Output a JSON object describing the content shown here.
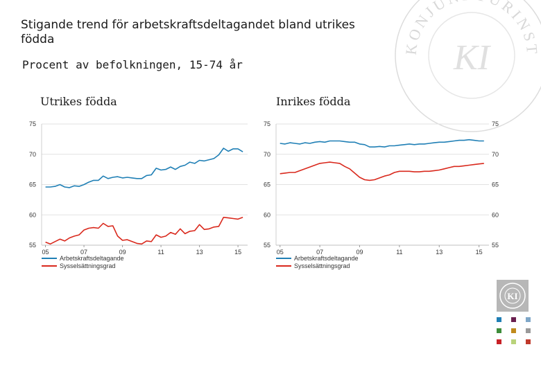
{
  "title": "Stigande trend för arbetskraftsdeltagandet bland utrikes födda",
  "subtitle": "Procent av befolkningen, 15-74 år",
  "brand": {
    "watermark_text": "KONJUNKTURINSTITUTET",
    "logo_text": "KI"
  },
  "colors": {
    "participation": "#1f7fb5",
    "employment": "#d9281c",
    "grid": "#e2e2e2",
    "axis_text": "#333333",
    "palette": [
      "#1f7fb5",
      "#6a1f4f",
      "#7fa7c8",
      "#3e8d3a",
      "#c08a1c",
      "#9a9a9a",
      "#c82127",
      "#b9d37b",
      "#c0392b"
    ]
  },
  "chart_data": [
    {
      "type": "line",
      "title": "Utrikes födda",
      "x": [
        2005.0,
        2005.25,
        2005.5,
        2005.75,
        2006.0,
        2006.25,
        2006.5,
        2006.75,
        2007.0,
        2007.25,
        2007.5,
        2007.75,
        2008.0,
        2008.25,
        2008.5,
        2008.75,
        2009.0,
        2009.25,
        2009.5,
        2009.75,
        2010.0,
        2010.25,
        2010.5,
        2010.75,
        2011.0,
        2011.25,
        2011.5,
        2011.75,
        2012.0,
        2012.25,
        2012.5,
        2012.75,
        2013.0,
        2013.25,
        2013.5,
        2013.75,
        2014.0,
        2014.25,
        2014.5,
        2014.75,
        2015.0,
        2015.25
      ],
      "xticks": [
        2005,
        2007,
        2009,
        2011,
        2013,
        2015
      ],
      "xtick_labels": [
        "05",
        "07",
        "09",
        "11",
        "13",
        "15"
      ],
      "ylim": [
        55,
        75
      ],
      "yticks": [
        55,
        60,
        65,
        70,
        75
      ],
      "ytick_labels": [
        "55",
        "60",
        "65",
        "70",
        "75"
      ],
      "series": [
        {
          "name": "Arbetskraftsdeltagande",
          "values": [
            64.6,
            64.6,
            64.7,
            65.0,
            64.6,
            64.5,
            64.8,
            64.7,
            65.0,
            65.4,
            65.7,
            65.7,
            66.4,
            66.0,
            66.2,
            66.3,
            66.1,
            66.2,
            66.1,
            66.0,
            66.0,
            66.5,
            66.6,
            67.7,
            67.4,
            67.5,
            67.9,
            67.5,
            68.0,
            68.2,
            68.7,
            68.5,
            69.0,
            68.9,
            69.1,
            69.3,
            69.9,
            71.0,
            70.5,
            70.9,
            70.9,
            70.4
          ]
        },
        {
          "name": "Sysselsättningsgrad",
          "values": [
            55.5,
            55.2,
            55.6,
            56.0,
            55.7,
            56.2,
            56.5,
            56.7,
            57.5,
            57.8,
            57.9,
            57.8,
            58.6,
            58.1,
            58.2,
            56.5,
            55.8,
            55.9,
            55.6,
            55.3,
            55.2,
            55.7,
            55.6,
            56.7,
            56.3,
            56.5,
            57.1,
            56.8,
            57.7,
            56.9,
            57.3,
            57.4,
            58.4,
            57.6,
            57.7,
            58.0,
            58.1,
            59.6,
            59.5,
            59.4,
            59.3,
            59.6
          ]
        }
      ]
    },
    {
      "type": "line",
      "title": "Inrikes födda",
      "x": [
        2005.0,
        2005.25,
        2005.5,
        2005.75,
        2006.0,
        2006.25,
        2006.5,
        2006.75,
        2007.0,
        2007.25,
        2007.5,
        2007.75,
        2008.0,
        2008.25,
        2008.5,
        2008.75,
        2009.0,
        2009.25,
        2009.5,
        2009.75,
        2010.0,
        2010.25,
        2010.5,
        2010.75,
        2011.0,
        2011.25,
        2011.5,
        2011.75,
        2012.0,
        2012.25,
        2012.5,
        2012.75,
        2013.0,
        2013.25,
        2013.5,
        2013.75,
        2014.0,
        2014.25,
        2014.5,
        2014.75,
        2015.0,
        2015.25
      ],
      "xticks": [
        2005,
        2007,
        2009,
        2011,
        2013,
        2015
      ],
      "xtick_labels": [
        "05",
        "07",
        "09",
        "11",
        "13",
        "15"
      ],
      "ylim": [
        55,
        75
      ],
      "yticks": [
        55,
        60,
        65,
        70,
        75
      ],
      "ytick_labels": [
        "55",
        "60",
        "65",
        "70",
        "75"
      ],
      "series": [
        {
          "name": "Arbetskraftsdeltagande",
          "values": [
            71.8,
            71.7,
            71.9,
            71.8,
            71.7,
            71.9,
            71.8,
            72.0,
            72.1,
            72.0,
            72.2,
            72.2,
            72.2,
            72.1,
            72.0,
            72.0,
            71.7,
            71.6,
            71.2,
            71.2,
            71.3,
            71.2,
            71.4,
            71.4,
            71.5,
            71.6,
            71.7,
            71.6,
            71.7,
            71.7,
            71.8,
            71.9,
            72.0,
            72.0,
            72.1,
            72.2,
            72.3,
            72.3,
            72.4,
            72.3,
            72.2,
            72.2
          ]
        },
        {
          "name": "Sysselsättningsgrad",
          "values": [
            66.8,
            66.9,
            67.0,
            67.0,
            67.3,
            67.6,
            67.9,
            68.2,
            68.5,
            68.6,
            68.7,
            68.6,
            68.5,
            68.0,
            67.6,
            66.9,
            66.2,
            65.8,
            65.7,
            65.8,
            66.1,
            66.4,
            66.6,
            67.0,
            67.2,
            67.2,
            67.2,
            67.1,
            67.1,
            67.2,
            67.2,
            67.3,
            67.4,
            67.6,
            67.8,
            68.0,
            68.0,
            68.1,
            68.2,
            68.3,
            68.4,
            68.5
          ]
        }
      ]
    }
  ]
}
